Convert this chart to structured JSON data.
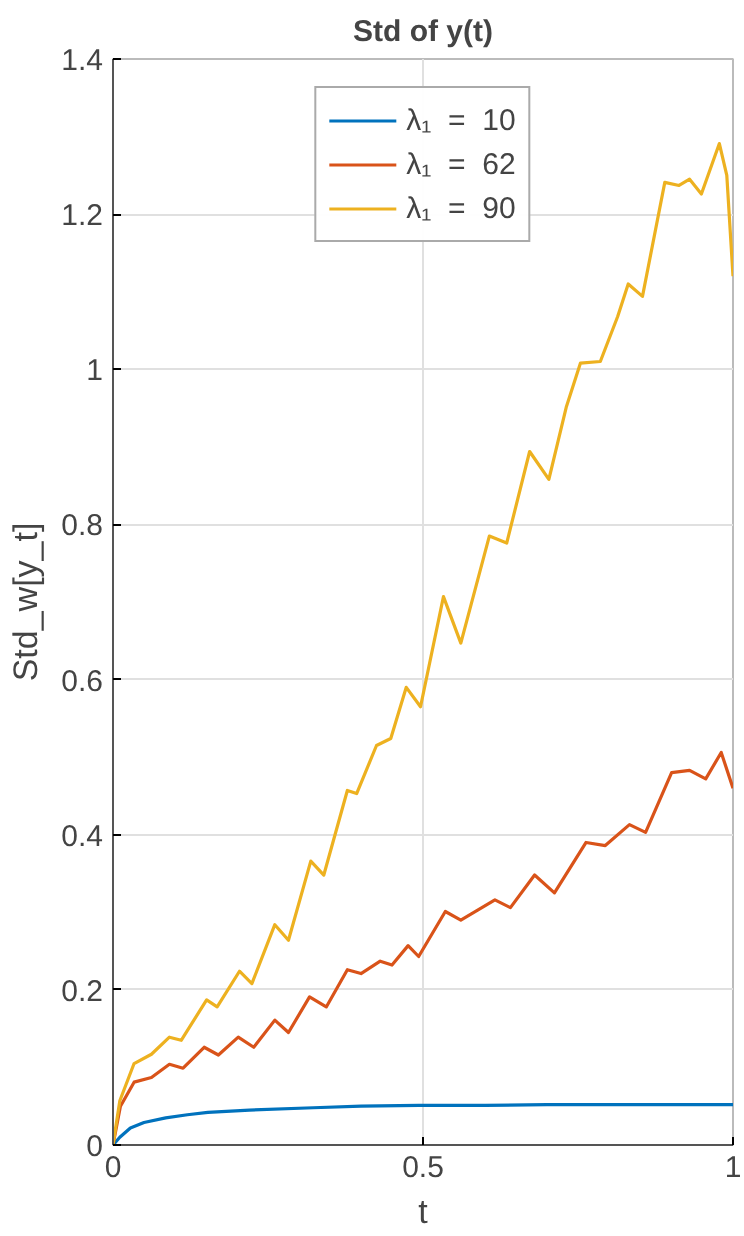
{
  "chart_data": {
    "type": "line",
    "title": "Std of y(t)",
    "xlabel": "t",
    "ylabel": "Std_w[y_t]",
    "xlim": [
      0,
      1
    ],
    "ylim": [
      0,
      1.4
    ],
    "xticks": [
      0,
      0.5,
      1
    ],
    "yticks": [
      0,
      0.2,
      0.4,
      0.6,
      0.8,
      1,
      1.2,
      1.4
    ],
    "grid": true,
    "legend": "top",
    "line_style": "solid",
    "series": [
      {
        "name": "λ₁  =  10",
        "color": "#0072bd",
        "x": [
          0,
          0.011,
          0.028,
          0.05,
          0.085,
          0.12,
          0.153,
          0.22,
          0.323,
          0.4,
          0.493,
          0.6,
          0.7,
          0.8,
          0.9,
          1
        ],
        "values": [
          0,
          0.01,
          0.022,
          0.029,
          0.035,
          0.039,
          0.042,
          0.045,
          0.048,
          0.05,
          0.051,
          0.051,
          0.052,
          0.052,
          0.052,
          0.052
        ]
      },
      {
        "name": "λ₁  =  62",
        "color": "#d95319",
        "x": [
          0,
          0.012,
          0.034,
          0.062,
          0.091,
          0.113,
          0.147,
          0.17,
          0.202,
          0.227,
          0.261,
          0.283,
          0.317,
          0.344,
          0.378,
          0.4,
          0.431,
          0.45,
          0.476,
          0.493,
          0.536,
          0.561,
          0.616,
          0.641,
          0.68,
          0.712,
          0.763,
          0.794,
          0.833,
          0.859,
          0.901,
          0.93,
          0.956,
          0.981,
          1
        ],
        "values": [
          0,
          0.05,
          0.081,
          0.087,
          0.104,
          0.099,
          0.126,
          0.116,
          0.139,
          0.126,
          0.161,
          0.145,
          0.191,
          0.178,
          0.226,
          0.221,
          0.237,
          0.232,
          0.257,
          0.243,
          0.301,
          0.29,
          0.316,
          0.306,
          0.348,
          0.325,
          0.39,
          0.386,
          0.413,
          0.403,
          0.48,
          0.483,
          0.472,
          0.506,
          0.46
        ]
      },
      {
        "name": "λ₁  =  90",
        "color": "#edb120",
        "x": [
          0,
          0.011,
          0.034,
          0.062,
          0.091,
          0.11,
          0.151,
          0.168,
          0.204,
          0.224,
          0.261,
          0.283,
          0.319,
          0.34,
          0.378,
          0.393,
          0.425,
          0.448,
          0.473,
          0.496,
          0.533,
          0.561,
          0.607,
          0.635,
          0.672,
          0.703,
          0.731,
          0.754,
          0.786,
          0.814,
          0.831,
          0.854,
          0.89,
          0.913,
          0.93,
          0.949,
          0.978,
          0.99,
          1
        ],
        "values": [
          0,
          0.057,
          0.105,
          0.117,
          0.139,
          0.135,
          0.187,
          0.178,
          0.224,
          0.208,
          0.284,
          0.264,
          0.366,
          0.348,
          0.457,
          0.453,
          0.515,
          0.524,
          0.59,
          0.565,
          0.707,
          0.647,
          0.785,
          0.776,
          0.894,
          0.858,
          0.951,
          1.008,
          1.01,
          1.068,
          1.11,
          1.094,
          1.241,
          1.237,
          1.245,
          1.226,
          1.291,
          1.25,
          1.12
        ]
      }
    ]
  }
}
